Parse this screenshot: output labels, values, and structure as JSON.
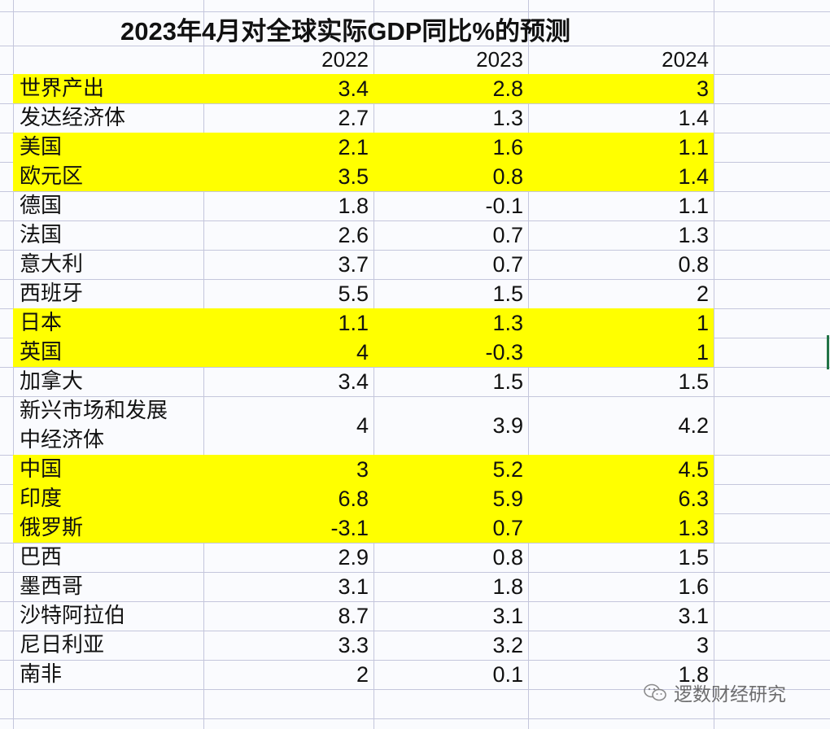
{
  "title": "2023年4月对全球实际GDP同比%的预测",
  "headers": {
    "label": "",
    "y2022": "2022",
    "y2023": "2023",
    "y2024": "2024"
  },
  "highlight_color": "#ffff00",
  "rows": [
    {
      "label": "世界产出",
      "v2022": "3.4",
      "v2023": "2.8",
      "v2024": "3",
      "highlight": true
    },
    {
      "label": "发达经济体",
      "v2022": "2.7",
      "v2023": "1.3",
      "v2024": "1.4",
      "highlight": false
    },
    {
      "label": "美国",
      "v2022": "2.1",
      "v2023": "1.6",
      "v2024": "1.1",
      "highlight": true
    },
    {
      "label": "欧元区",
      "v2022": "3.5",
      "v2023": "0.8",
      "v2024": "1.4",
      "highlight": true
    },
    {
      "label": "德国",
      "v2022": "1.8",
      "v2023": "-0.1",
      "v2024": "1.1",
      "highlight": false
    },
    {
      "label": "法国",
      "v2022": "2.6",
      "v2023": "0.7",
      "v2024": "1.3",
      "highlight": false
    },
    {
      "label": "意大利",
      "v2022": "3.7",
      "v2023": "0.7",
      "v2024": "0.8",
      "highlight": false
    },
    {
      "label": "西班牙",
      "v2022": "5.5",
      "v2023": "1.5",
      "v2024": "2",
      "highlight": false
    },
    {
      "label": "日本",
      "v2022": "1.1",
      "v2023": "1.3",
      "v2024": "1",
      "highlight": true
    },
    {
      "label": "英国",
      "v2022": "4",
      "v2023": "-0.3",
      "v2024": "1",
      "highlight": true
    },
    {
      "label": "加拿大",
      "v2022": "3.4",
      "v2023": "1.5",
      "v2024": "1.5",
      "highlight": false
    },
    {
      "label": "新兴市场和发展中经济体",
      "label_line1": "新兴市场和发展",
      "label_line2": "中经济体",
      "v2022": "4",
      "v2023": "3.9",
      "v2024": "4.2",
      "highlight": false
    },
    {
      "label": "中国",
      "v2022": "3",
      "v2023": "5.2",
      "v2024": "4.5",
      "highlight": true
    },
    {
      "label": "印度",
      "v2022": "6.8",
      "v2023": "5.9",
      "v2024": "6.3",
      "highlight": true
    },
    {
      "label": "俄罗斯",
      "v2022": "-3.1",
      "v2023": "0.7",
      "v2024": "1.3",
      "highlight": true
    },
    {
      "label": "巴西",
      "v2022": "2.9",
      "v2023": "0.8",
      "v2024": "1.5",
      "highlight": false
    },
    {
      "label": "墨西哥",
      "v2022": "3.1",
      "v2023": "1.8",
      "v2024": "1.6",
      "highlight": false
    },
    {
      "label": "沙特阿拉伯",
      "v2022": "8.7",
      "v2023": "3.1",
      "v2024": "3.1",
      "highlight": false
    },
    {
      "label": "尼日利亚",
      "v2022": "3.3",
      "v2023": "3.2",
      "v2024": "3",
      "highlight": false
    },
    {
      "label": "南非",
      "v2022": "2",
      "v2023": "0.1",
      "v2024": "1.8",
      "highlight": false
    }
  ],
  "watermark": {
    "icon": "wechat-icon",
    "text": "逻数财经研究"
  }
}
